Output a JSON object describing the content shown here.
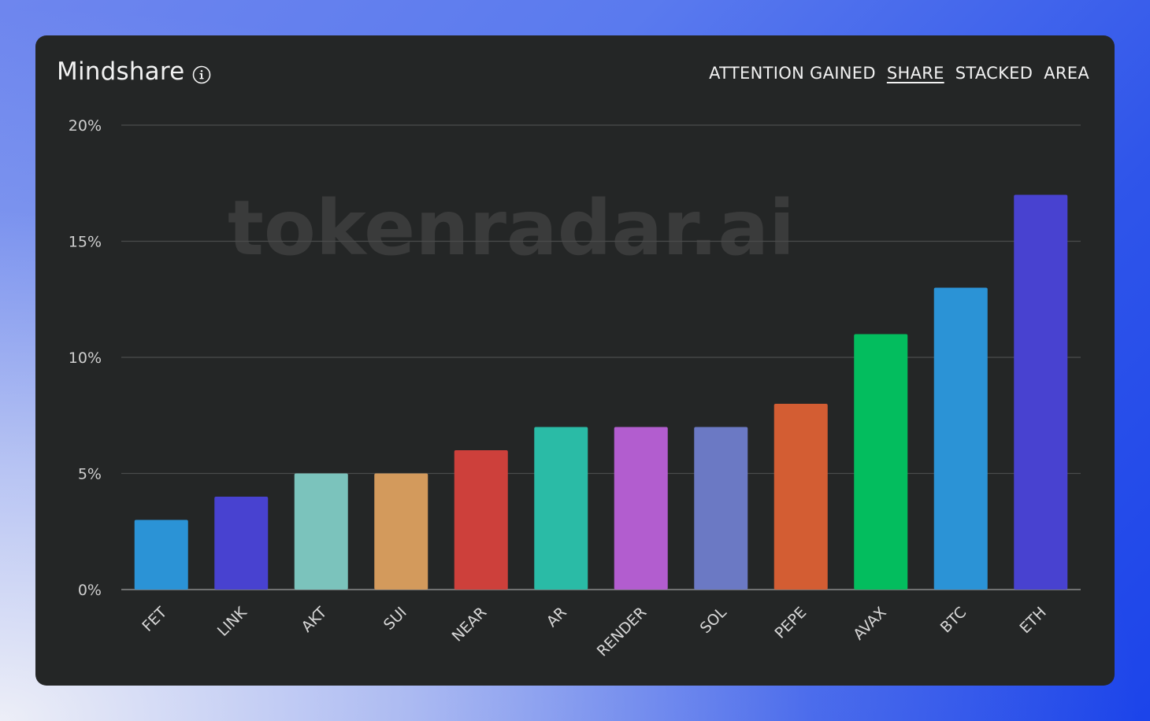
{
  "header": {
    "title": "Mindshare",
    "tabs": [
      {
        "label": "ATTENTION GAINED",
        "active": false
      },
      {
        "label": "SHARE",
        "active": true
      },
      {
        "label": "STACKED",
        "active": false
      },
      {
        "label": "AREA",
        "active": false
      }
    ]
  },
  "watermark": "tokenradar.ai",
  "chart_data": {
    "type": "bar",
    "categories": [
      "FET",
      "LINK",
      "AKT",
      "SUI",
      "NEAR",
      "AR",
      "RENDER",
      "SOL",
      "PEPE",
      "AVAX",
      "BTC",
      "ETH"
    ],
    "values": [
      3,
      4,
      5,
      5,
      6,
      7,
      7,
      7,
      8,
      11,
      13,
      17
    ],
    "colors": [
      "#2b93d6",
      "#4842d0",
      "#7bc3bc",
      "#d39a5c",
      "#cd403b",
      "#2abba6",
      "#b25dcf",
      "#6b79c4",
      "#d35d33",
      "#03bd5e",
      "#2b93d6",
      "#4842d0"
    ],
    "ylim": [
      0,
      20
    ],
    "yticks": [
      0,
      5,
      10,
      15,
      20
    ],
    "ytick_labels": [
      "0%",
      "5%",
      "10%",
      "15%",
      "20%"
    ],
    "unit": "%",
    "grid": true
  }
}
